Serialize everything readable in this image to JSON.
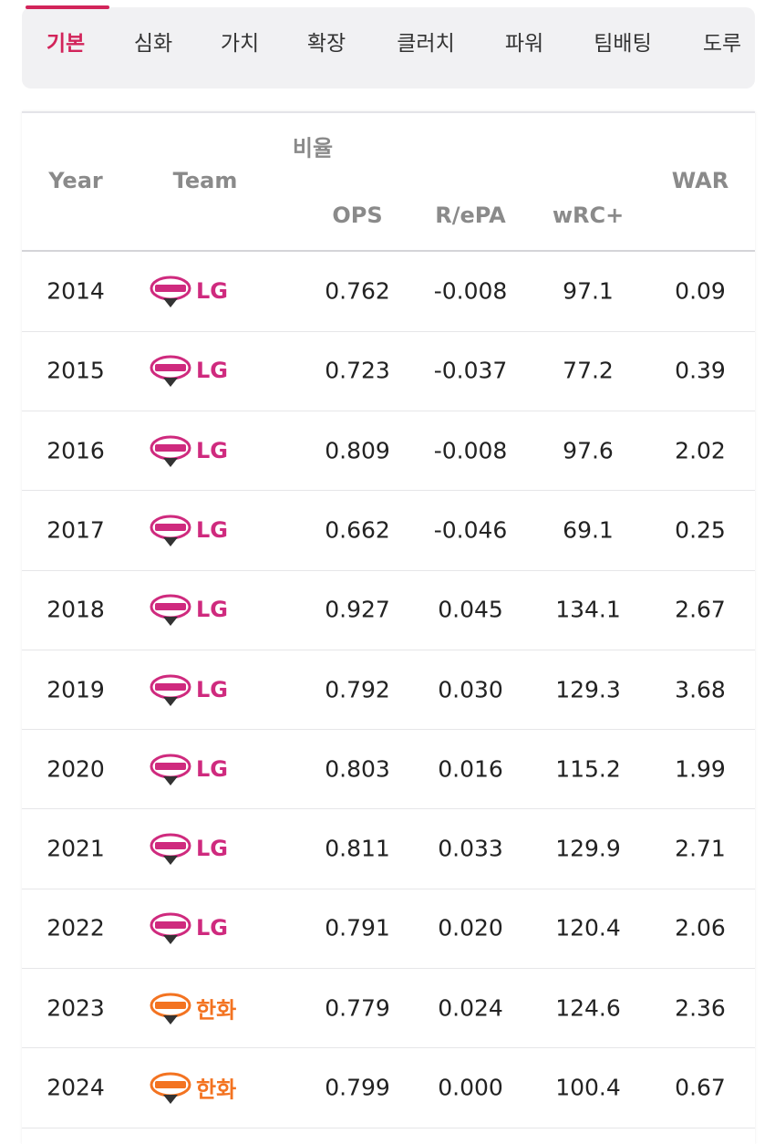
{
  "tabs": [
    "기본",
    "심화",
    "가치",
    "확장",
    "클러치",
    "파워",
    "팀배팅",
    "도루"
  ],
  "table": {
    "header": {
      "year": "Year",
      "team": "Team",
      "group": "비율",
      "ops": "OPS",
      "repa": "R/ePA",
      "wrc": "wRC+",
      "war": "WAR"
    },
    "rows": [
      {
        "year": "2014",
        "team": "LG",
        "color": "#cf2a7e",
        "ops": "0.762",
        "repa": "-0.008",
        "wrc": "97.1",
        "war": "0.09"
      },
      {
        "year": "2015",
        "team": "LG",
        "color": "#cf2a7e",
        "ops": "0.723",
        "repa": "-0.037",
        "wrc": "77.2",
        "war": "0.39"
      },
      {
        "year": "2016",
        "team": "LG",
        "color": "#cf2a7e",
        "ops": "0.809",
        "repa": "-0.008",
        "wrc": "97.6",
        "war": "2.02"
      },
      {
        "year": "2017",
        "team": "LG",
        "color": "#cf2a7e",
        "ops": "0.662",
        "repa": "-0.046",
        "wrc": "69.1",
        "war": "0.25"
      },
      {
        "year": "2018",
        "team": "LG",
        "color": "#cf2a7e",
        "ops": "0.927",
        "repa": "0.045",
        "wrc": "134.1",
        "war": "2.67"
      },
      {
        "year": "2019",
        "team": "LG",
        "color": "#cf2a7e",
        "ops": "0.792",
        "repa": "0.030",
        "wrc": "129.3",
        "war": "3.68"
      },
      {
        "year": "2020",
        "team": "LG",
        "color": "#cf2a7e",
        "ops": "0.803",
        "repa": "0.016",
        "wrc": "115.2",
        "war": "1.99"
      },
      {
        "year": "2021",
        "team": "LG",
        "color": "#cf2a7e",
        "ops": "0.811",
        "repa": "0.033",
        "wrc": "129.9",
        "war": "2.71"
      },
      {
        "year": "2022",
        "team": "LG",
        "color": "#cf2a7e",
        "ops": "0.791",
        "repa": "0.020",
        "wrc": "120.4",
        "war": "2.06"
      },
      {
        "year": "2023",
        "team": "한화",
        "color": "#f37321",
        "ops": "0.779",
        "repa": "0.024",
        "wrc": "124.6",
        "war": "2.36"
      },
      {
        "year": "2024",
        "team": "한화",
        "color": "#f37321",
        "ops": "0.799",
        "repa": "0.000",
        "wrc": "100.4",
        "war": "0.67"
      }
    ]
  }
}
